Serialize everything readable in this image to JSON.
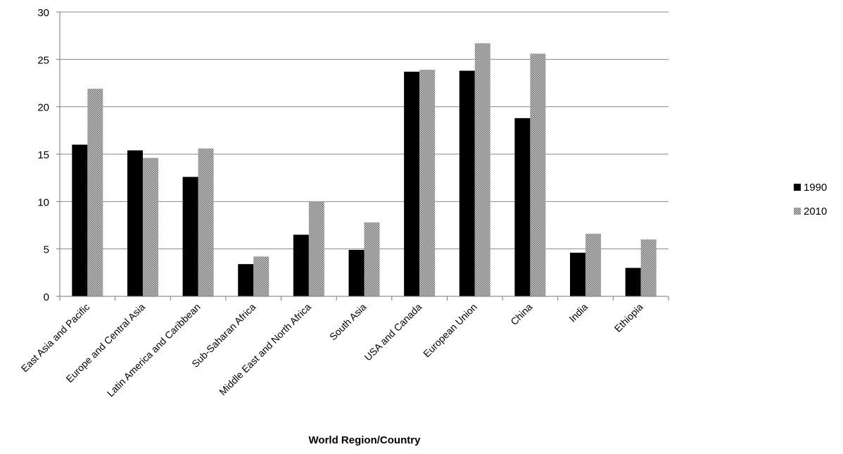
{
  "chart_data": {
    "type": "bar",
    "title": "",
    "xlabel": "World Region/Country",
    "ylabel": "",
    "ylim": [
      0,
      30
    ],
    "yticks": [
      0,
      5,
      10,
      15,
      20,
      25,
      30
    ],
    "grid": true,
    "legend_position": "right",
    "categories": [
      "East Asia and Pacific",
      "Europe and Central Asia",
      "Latin America and Caribbean",
      "Sub-Saharan Africa",
      "Middle East and North Africa",
      "South Asia",
      "USA and Canada",
      "European Union",
      "China",
      "India",
      "Ethiopia"
    ],
    "series": [
      {
        "name": "1990",
        "color": "#000000",
        "pattern": "solid",
        "values": [
          16.0,
          15.4,
          12.6,
          3.4,
          6.5,
          4.9,
          23.7,
          23.8,
          18.8,
          4.6,
          3.0
        ]
      },
      {
        "name": "2010",
        "color": "#909090",
        "pattern": "checkered",
        "values": [
          21.9,
          14.6,
          15.6,
          4.2,
          10.0,
          7.8,
          23.9,
          26.7,
          25.6,
          6.6,
          6.0
        ]
      }
    ]
  }
}
